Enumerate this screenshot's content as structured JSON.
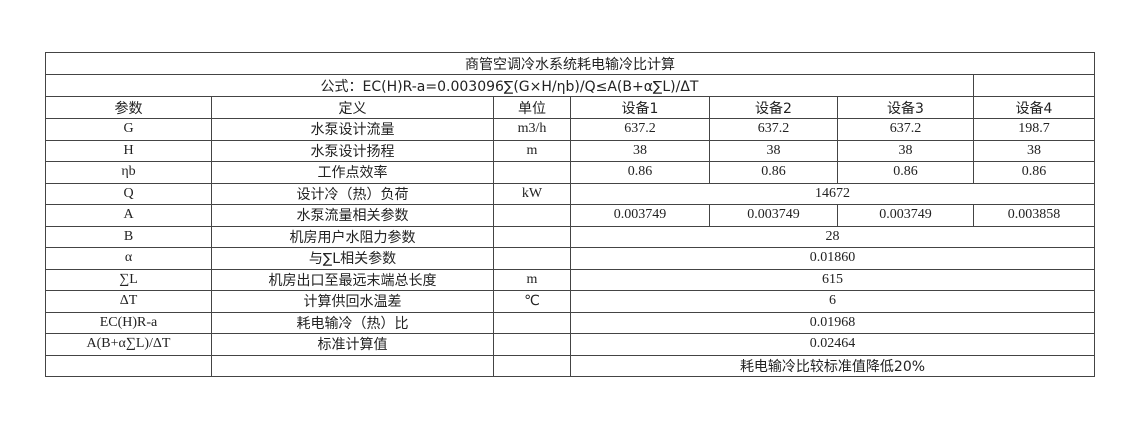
{
  "title": "商管空调冷水系统耗电输冷比计算",
  "formula": "公式：EC(H)R-a=0.003096∑(G×H/ηb)/Q≤A(B+α∑L)/ΔT",
  "headers": [
    "参数",
    "定义",
    "单位",
    "设备1",
    "设备2",
    "设备3",
    "设备4"
  ],
  "rows": [
    {
      "param": "G",
      "def": "水泵设计流量",
      "unit": "m3/h",
      "values": [
        "637.2",
        "637.2",
        "637.2",
        "198.7"
      ]
    },
    {
      "param": "H",
      "def": "水泵设计扬程",
      "unit": "m",
      "values": [
        "38",
        "38",
        "38",
        "38"
      ]
    },
    {
      "param": "ηb",
      "def": "工作点效率",
      "unit": "",
      "values": [
        "0.86",
        "0.86",
        "0.86",
        "0.86"
      ]
    },
    {
      "param": "Q",
      "def": "设计冷（热）负荷",
      "unit": "kW",
      "merged": "14672"
    },
    {
      "param": "A",
      "def": "水泵流量相关参数",
      "unit": "",
      "values": [
        "0.003749",
        "0.003749",
        "0.003749",
        "0.003858"
      ]
    },
    {
      "param": "B",
      "def": "机房用户水阻力参数",
      "unit": "",
      "merged": "28"
    },
    {
      "param": "α",
      "def": "与∑L相关参数",
      "unit": "",
      "merged": "0.01860"
    },
    {
      "param": "∑L",
      "def": "机房出口至最远末端总长度",
      "unit": "m",
      "merged": "615"
    },
    {
      "param": "ΔT",
      "def": "计算供回水温差",
      "unit": "℃",
      "merged": "6"
    },
    {
      "param": "EC(H)R-a",
      "def": "耗电输冷（热）比",
      "unit": "",
      "merged": "0.01968"
    },
    {
      "param": "A(B+α∑L)/ΔT",
      "def": "标准计算值",
      "unit": "",
      "merged": "0.02464"
    },
    {
      "param": "",
      "def": "",
      "unit": "",
      "merged": "耗电输冷比较标准值降低20%"
    }
  ]
}
